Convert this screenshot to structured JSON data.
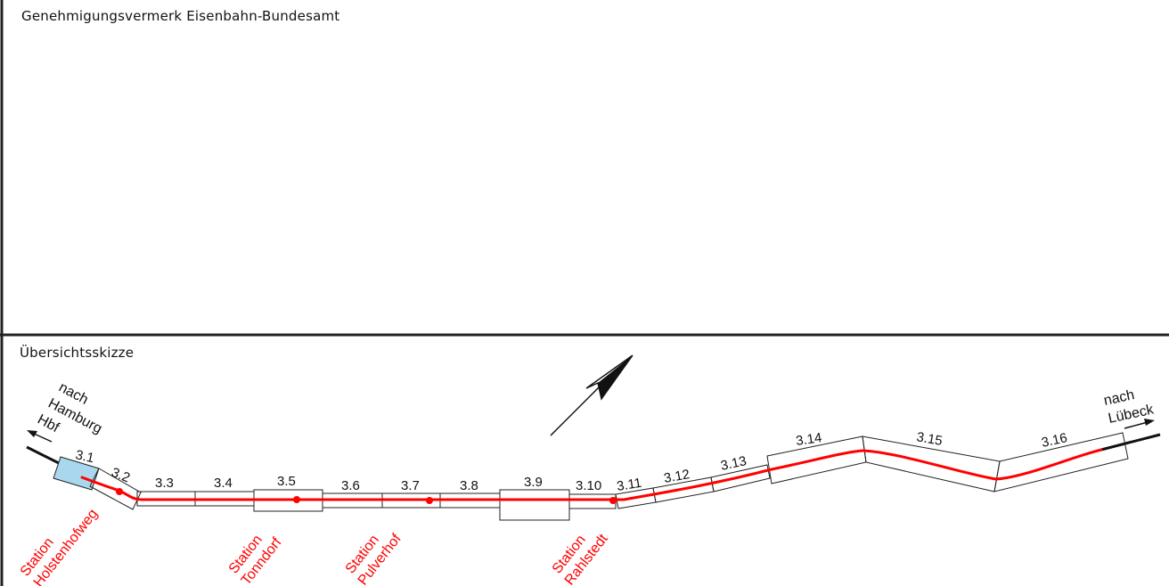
{
  "header": {
    "approval_note": "Genehmigungsvermerk Eisenbahn-Bundesamt"
  },
  "overview": {
    "title": "Übersichtsskizze",
    "segments": [
      "3.1",
      "3.2",
      "3.3",
      "3.4",
      "3.5",
      "3.6",
      "3.7",
      "3.8",
      "3.9",
      "3.10",
      "3.11",
      "3.12",
      "3.13",
      "3.14",
      "3.15",
      "3.16"
    ],
    "directions": {
      "west": [
        "nach",
        "Hamburg",
        "Hbf"
      ],
      "east": [
        "nach",
        "Lübeck"
      ]
    },
    "stations": [
      {
        "l1": "Station",
        "l2": "Holstenhofweg"
      },
      {
        "l1": "Station",
        "l2": "Tonndorf"
      },
      {
        "l1": "Station",
        "l2": "Pulverhof"
      },
      {
        "l1": "Station",
        "l2": "Rahlstedt"
      }
    ],
    "colors": {
      "route": "#ff0000",
      "highlight": "#a9d8ee",
      "frame": "#222222"
    }
  }
}
